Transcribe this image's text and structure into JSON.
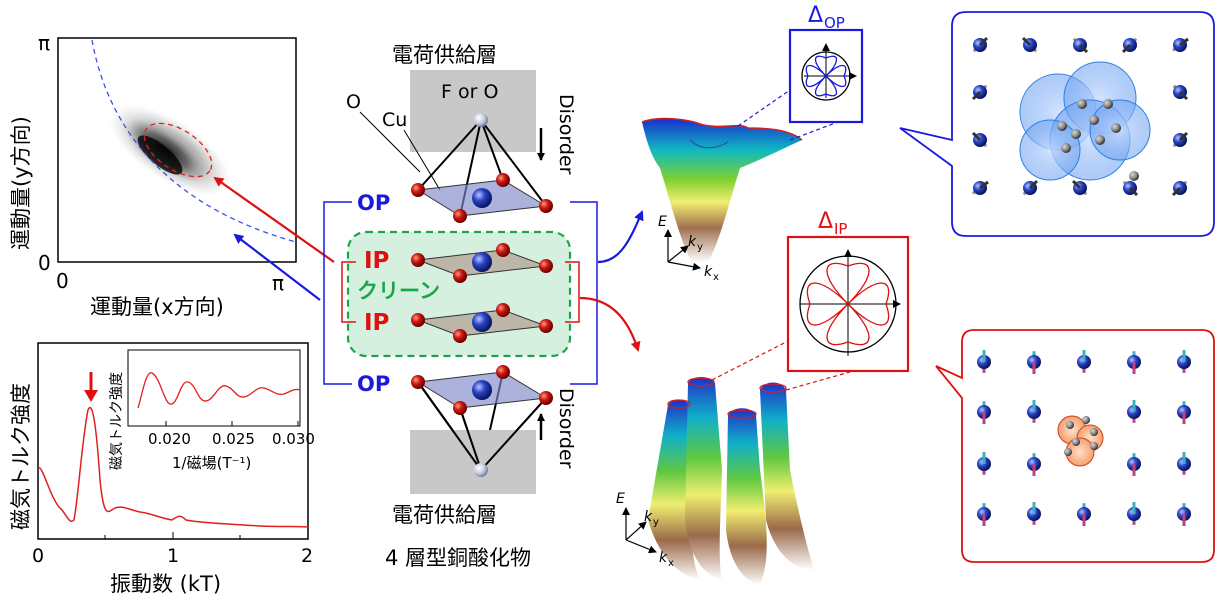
{
  "arpes": {
    "y_label": "運動量(y方向)",
    "x_label": "運動量(x方向)",
    "tick_pi_top": "π",
    "tick_zero_y": "0",
    "tick_zero_x": "0",
    "tick_pi_right": "π"
  },
  "torque": {
    "y_label": "磁気トルク強度",
    "x_label": "振動数 (kT)",
    "x_ticks": [
      "0",
      "1",
      "2"
    ],
    "inset_y_label": "磁気トルク強度",
    "inset_x_label": "1/磁場(T⁻¹)",
    "inset_x_ticks": [
      "0.020",
      "0.025",
      "0.030"
    ]
  },
  "structure": {
    "title": "4 層型銅酸化物",
    "charge_top": "電荷供給層",
    "charge_bottom": "電荷供給層",
    "f_or_o": "F or O",
    "label_o": "O",
    "label_cu": "Cu",
    "disorder_top": "Disorder",
    "disorder_bottom": "Disorder",
    "op_top": "OP",
    "op_bottom": "OP",
    "ip_top": "IP",
    "ip_bottom": "IP",
    "clean": "クリーン"
  },
  "gap": {
    "op_label": "Δ",
    "op_sub": "OP",
    "ip_label": "Δ",
    "ip_sub": "IP"
  },
  "axes3d": {
    "e": "E",
    "ky": "k",
    "ky_sub": "y",
    "kx": "k",
    "kx_sub": "x"
  },
  "colors": {
    "op_blue": "#1a1adf",
    "ip_red": "#e01010",
    "clean_green": "#1aa54a",
    "torque_red": "#e02020"
  }
}
